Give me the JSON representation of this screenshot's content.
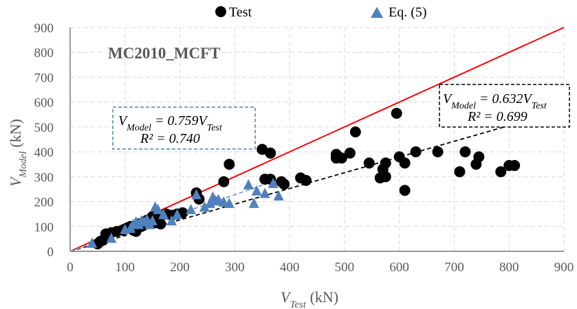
{
  "chart_data": {
    "type": "scatter",
    "title": "MC2010_MCFT",
    "xlabel": {
      "main": "V",
      "sub": "Test",
      "unit": " (kN)"
    },
    "ylabel": {
      "main": "V",
      "sub": "Model",
      "unit": " (kN)"
    },
    "xlim": [
      0,
      900
    ],
    "ylim": [
      0,
      900
    ],
    "xticks": [
      "0",
      "100",
      "200",
      "300",
      "400",
      "500",
      "600",
      "700",
      "800",
      "900"
    ],
    "yticks": [
      "0",
      "100",
      "200",
      "300",
      "400",
      "500",
      "600",
      "700",
      "800",
      "900"
    ],
    "grid": "dashed",
    "legend_position": "top",
    "colors": {
      "test": "#000000",
      "eq5": "#4f81bd",
      "equality": "#ff0000",
      "fit_test": "#000000",
      "fit_eq5": "#7f9fcf"
    },
    "series": [
      {
        "name": "Test",
        "marker": "circle",
        "points": [
          [
            50,
            30
          ],
          [
            55,
            40
          ],
          [
            60,
            45
          ],
          [
            65,
            70
          ],
          [
            75,
            75
          ],
          [
            85,
            80
          ],
          [
            95,
            85
          ],
          [
            100,
            90
          ],
          [
            105,
            95
          ],
          [
            110,
            100
          ],
          [
            115,
            85
          ],
          [
            120,
            80
          ],
          [
            125,
            110
          ],
          [
            130,
            100
          ],
          [
            135,
            115
          ],
          [
            140,
            125
          ],
          [
            145,
            120
          ],
          [
            150,
            140
          ],
          [
            155,
            115
          ],
          [
            160,
            130
          ],
          [
            165,
            110
          ],
          [
            175,
            150
          ],
          [
            185,
            145
          ],
          [
            195,
            150
          ],
          [
            205,
            155
          ],
          [
            230,
            235
          ],
          [
            235,
            210
          ],
          [
            280,
            280
          ],
          [
            290,
            350
          ],
          [
            350,
            410
          ],
          [
            355,
            290
          ],
          [
            365,
            290
          ],
          [
            365,
            395
          ],
          [
            385,
            280
          ],
          [
            390,
            270
          ],
          [
            420,
            295
          ],
          [
            430,
            285
          ],
          [
            485,
            390
          ],
          [
            485,
            375
          ],
          [
            495,
            375
          ],
          [
            510,
            395
          ],
          [
            520,
            480
          ],
          [
            545,
            355
          ],
          [
            565,
            295
          ],
          [
            570,
            330
          ],
          [
            575,
            300
          ],
          [
            575,
            355
          ],
          [
            595,
            555
          ],
          [
            600,
            380
          ],
          [
            610,
            355
          ],
          [
            610,
            245
          ],
          [
            630,
            400
          ],
          [
            670,
            400
          ],
          [
            710,
            320
          ],
          [
            720,
            400
          ],
          [
            740,
            350
          ],
          [
            745,
            380
          ],
          [
            785,
            320
          ],
          [
            800,
            345
          ],
          [
            810,
            345
          ]
        ]
      },
      {
        "name": "Eq. (5)",
        "marker": "triangle",
        "points": [
          [
            40,
            35
          ],
          [
            75,
            55
          ],
          [
            100,
            90
          ],
          [
            110,
            95
          ],
          [
            115,
            110
          ],
          [
            120,
            120
          ],
          [
            125,
            110
          ],
          [
            130,
            125
          ],
          [
            135,
            120
          ],
          [
            140,
            130
          ],
          [
            145,
            110
          ],
          [
            150,
            125
          ],
          [
            155,
            180
          ],
          [
            160,
            170
          ],
          [
            170,
            150
          ],
          [
            185,
            125
          ],
          [
            195,
            150
          ],
          [
            220,
            170
          ],
          [
            230,
            230
          ],
          [
            245,
            180
          ],
          [
            255,
            195
          ],
          [
            260,
            220
          ],
          [
            265,
            205
          ],
          [
            270,
            210
          ],
          [
            280,
            200
          ],
          [
            290,
            195
          ],
          [
            325,
            270
          ],
          [
            335,
            195
          ],
          [
            340,
            245
          ],
          [
            355,
            235
          ],
          [
            370,
            275
          ],
          [
            380,
            225
          ]
        ]
      }
    ],
    "lines": [
      {
        "name": "equality",
        "slope": 1.0
      },
      {
        "name": "fit_test",
        "slope": 0.632,
        "x_end": 820
      },
      {
        "name": "fit_eq5",
        "slope": 0.759,
        "x_end": 380
      }
    ],
    "annotations": [
      {
        "id": "eq5",
        "line1": {
          "lhs": "V",
          "lhs_sub": "Model",
          "eq": " = 0.759V",
          "rhs_sub": "Test"
        },
        "line2": "R² = 0.740"
      },
      {
        "id": "test",
        "line1": {
          "lhs": "V",
          "lhs_sub": "Model",
          "eq": " = 0.632V",
          "rhs_sub": "Test"
        },
        "line2": "R² = 0.699"
      }
    ]
  }
}
